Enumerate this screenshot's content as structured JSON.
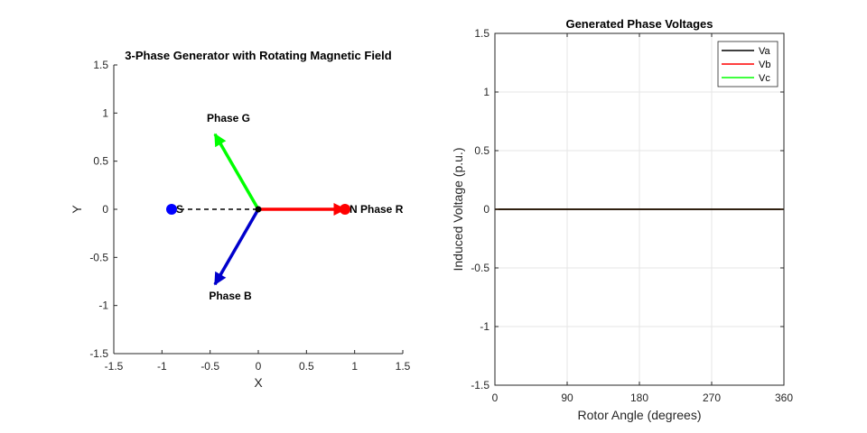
{
  "chart_data": [
    {
      "type": "vector",
      "title": "3-Phase Generator with Rotating Magnetic Field",
      "xlabel": "X",
      "ylabel": "Y",
      "xlim": [
        -1.5,
        1.5
      ],
      "ylim": [
        -1.5,
        1.5
      ],
      "xticks": [
        "-1.5",
        "-1",
        "-0.5",
        "0",
        "0.5",
        "1",
        "1.5"
      ],
      "yticks": [
        "1.5",
        "1",
        "0.5",
        "0",
        "-0.5",
        "-1",
        "-1.5"
      ],
      "grid": false,
      "phases": [
        {
          "name": "Phase R",
          "color": "#ff0000",
          "dx": 0.9,
          "dy": 0.0
        },
        {
          "name": "Phase G",
          "color": "#00ff00",
          "dx": -0.45,
          "dy": 0.78
        },
        {
          "name": "Phase B",
          "color": "#0000cc",
          "dx": -0.45,
          "dy": -0.78
        }
      ],
      "magnet": {
        "north_label": "N",
        "south_label": "S",
        "north_color": "#ff0000",
        "south_color": "#0000ff",
        "north": [
          0.9,
          0.0
        ],
        "south": [
          -0.9,
          0.0
        ],
        "center": [
          0,
          0
        ]
      }
    },
    {
      "type": "line",
      "title": "Generated Phase Voltages",
      "xlabel": "Rotor Angle (degrees)",
      "ylabel": "Induced Voltage (p.u.)",
      "xlim": [
        0,
        360
      ],
      "ylim": [
        -1.5,
        1.5
      ],
      "xticks": [
        "0",
        "90",
        "180",
        "270",
        "360"
      ],
      "yticks": [
        "1.5",
        "1",
        "0.5",
        "0",
        "-0.5",
        "-1",
        "-1.5"
      ],
      "grid": true,
      "legend": "top-right",
      "series": [
        {
          "name": "Va",
          "color": "#000000",
          "x": [
            0,
            360
          ],
          "y": [
            0,
            0
          ]
        },
        {
          "name": "Vb",
          "color": "#ff0000",
          "x": [
            0,
            360
          ],
          "y": [
            0,
            0
          ]
        },
        {
          "name": "Vc",
          "color": "#00ff00",
          "x": [
            0,
            360
          ],
          "y": [
            0,
            0
          ]
        }
      ]
    }
  ]
}
